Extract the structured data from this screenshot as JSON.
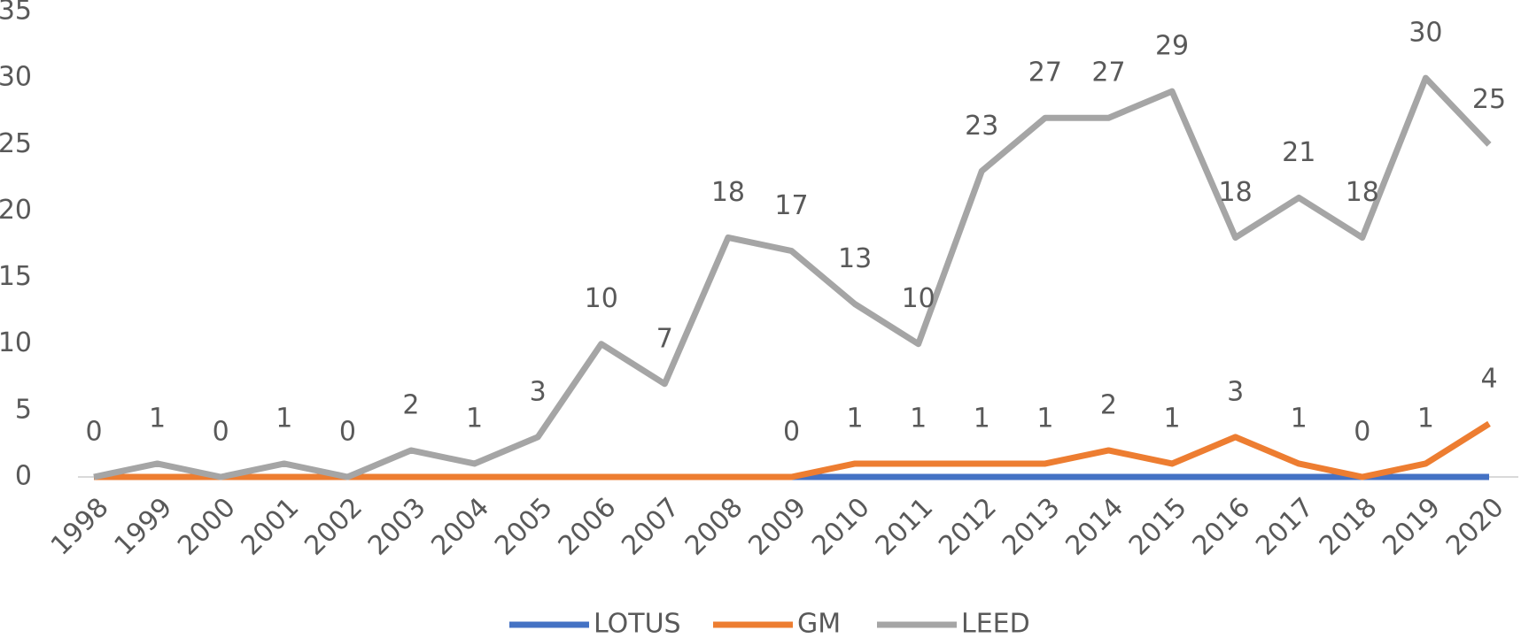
{
  "chart_data": {
    "type": "line",
    "categories": [
      "1998",
      "1999",
      "2000",
      "2001",
      "2002",
      "2003",
      "2004",
      "2005",
      "2006",
      "2007",
      "2008",
      "2009",
      "2010",
      "2011",
      "2012",
      "2013",
      "2014",
      "2015",
      "2016",
      "2017",
      "2018",
      "2019",
      "2020"
    ],
    "series": [
      {
        "name": "LOTUS",
        "color": "#4472c4",
        "values": [
          0,
          0,
          0,
          0,
          0,
          0,
          0,
          0,
          0,
          0,
          0,
          0,
          0,
          0,
          0,
          0,
          0,
          0,
          0,
          0,
          0,
          0,
          0
        ]
      },
      {
        "name": "GM",
        "color": "#ed7d31",
        "values": [
          0,
          0,
          0,
          0,
          0,
          0,
          0,
          0,
          0,
          0,
          0,
          0,
          1,
          1,
          1,
          1,
          2,
          1,
          3,
          1,
          0,
          1,
          4
        ],
        "value_labels": [
          null,
          null,
          null,
          null,
          null,
          null,
          null,
          null,
          null,
          null,
          null,
          "0",
          "1",
          "1",
          "1",
          "1",
          "2",
          "1",
          "3",
          "1",
          "0",
          "1",
          "4"
        ]
      },
      {
        "name": "LEED",
        "color": "#a5a5a5",
        "values": [
          0,
          1,
          0,
          1,
          0,
          2,
          1,
          3,
          10,
          7,
          18,
          17,
          13,
          10,
          23,
          27,
          27,
          29,
          18,
          21,
          18,
          30,
          25
        ],
        "value_labels": [
          "0",
          "1",
          "0",
          "1",
          "0",
          "2",
          "1",
          "3",
          "10",
          "7",
          "18",
          "17",
          "13",
          "10",
          "23",
          "27",
          "27",
          "29",
          "18",
          "21",
          "18",
          "30",
          "25"
        ]
      }
    ],
    "ylim": [
      0,
      35
    ],
    "yticks": [
      0,
      5,
      10,
      15,
      20,
      25,
      30,
      35
    ],
    "grid": false,
    "legend": "bottom"
  }
}
